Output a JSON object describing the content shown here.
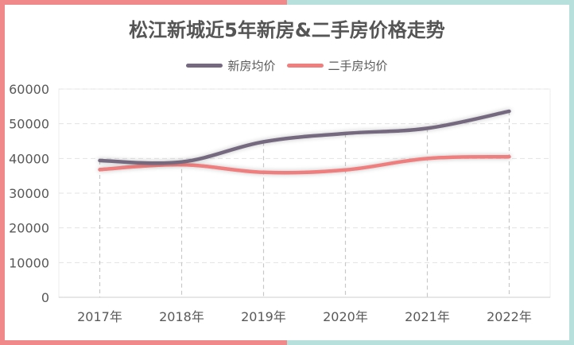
{
  "colors": {
    "frame_left": "#f08a8a",
    "frame_right": "#b7e0dc",
    "series_new": "#75697f",
    "series_second": "#ef7f7f"
  },
  "chart_data": {
    "type": "line",
    "title": "松江新城近5年新房&二手房价格走势",
    "categories": [
      "2017年",
      "2018年",
      "2019年",
      "2020年",
      "2021年",
      "2022年"
    ],
    "series": [
      {
        "name": "新房均价",
        "values": [
          39400,
          39000,
          44800,
          47200,
          48700,
          53600
        ]
      },
      {
        "name": "二手房均价",
        "values": [
          36800,
          38200,
          36000,
          36700,
          40000,
          40500
        ]
      }
    ],
    "yticks": [
      0,
      10000,
      20000,
      30000,
      40000,
      50000,
      60000
    ],
    "ylim": [
      0,
      60000
    ],
    "grid": true,
    "legend_position": "top"
  }
}
